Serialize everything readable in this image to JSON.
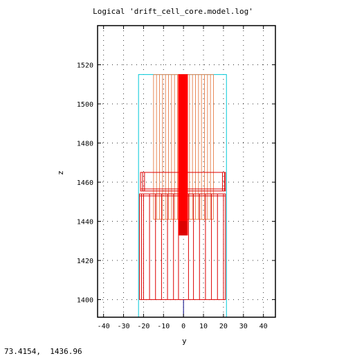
{
  "title": "Logical 'drift_cell_core.model.log'",
  "xlabel": "y",
  "ylabel": "z",
  "coordinates_readout": "73.4154,  1436.96",
  "colors": {
    "frame": "#000000",
    "grid": "#000000",
    "envelope": "#00c8d8",
    "upper_wires": "#e88858",
    "lower_cells": "#dd0000",
    "core_rod": "#ff0000",
    "axis_line": "#000080"
  },
  "chart_data": {
    "type": "diagram",
    "xlim": [
      -43,
      46
    ],
    "ylim": [
      1391,
      1540
    ],
    "x_ticks": [
      -40,
      -30,
      -20,
      -10,
      0,
      10,
      20,
      30,
      40
    ],
    "y_ticks": [
      1400,
      1420,
      1440,
      1460,
      1480,
      1500,
      1520
    ],
    "grid": true,
    "envelope": {
      "y": [
        -22.5,
        21.5
      ],
      "z": [
        1391,
        1515
      ]
    },
    "upper_wires": {
      "z": [
        1441,
        1515
      ],
      "y_positions": [
        -15,
        -13.5,
        -12,
        -10.5,
        -9,
        -7.5,
        -6,
        -4.5,
        -3,
        3,
        4.5,
        6,
        7.5,
        9,
        10.5,
        12,
        13.5,
        15
      ]
    },
    "middle_block": {
      "y": [
        -21.5,
        21
      ],
      "z": [
        1455.5,
        1465
      ],
      "inner_lines": [
        -20.5,
        -19.5,
        19.5,
        20.5
      ]
    },
    "lower_block": {
      "y": [
        -22,
        21
      ],
      "z": [
        1400,
        1454
      ],
      "inner_lines": [
        -21,
        -20,
        -17,
        -14,
        -11,
        -8,
        -5,
        -2.5,
        2.5,
        5,
        8,
        11,
        14,
        17,
        20
      ]
    },
    "core_rod": {
      "upper": {
        "y": [
          -2.5,
          2
        ],
        "z": [
          1433,
          1515
        ]
      },
      "lower": {
        "y": [
          -2,
          1.5
        ],
        "z": [
          1433,
          1440
        ]
      }
    },
    "center_axis": {
      "y": 0,
      "z": [
        1391,
        1400
      ]
    }
  }
}
